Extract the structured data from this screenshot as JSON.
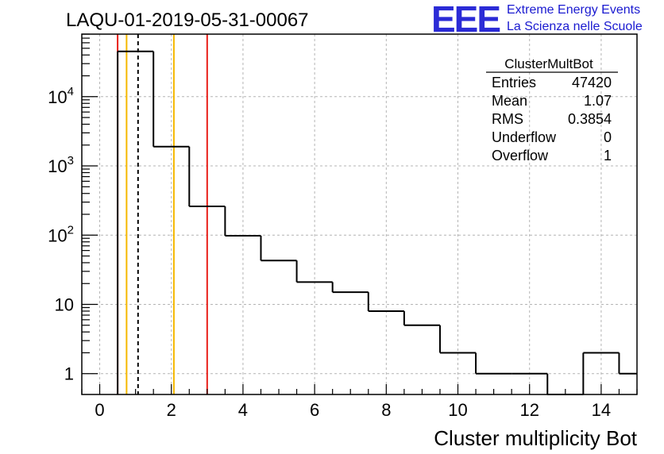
{
  "chart_data": {
    "type": "histogram",
    "title": "LAQU-01-2019-05-31-00067",
    "xlabel": "Cluster multiplicity Bot",
    "ylabel": "",
    "xlim": [
      -0.5,
      15
    ],
    "ylim": [
      0.5,
      80000
    ],
    "yscale": "log",
    "grid": true,
    "bin_edges": [
      0.5,
      1.5,
      2.5,
      3.5,
      4.5,
      5.5,
      6.5,
      7.5,
      8.5,
      9.5,
      10.5,
      11.5,
      12.5,
      13.5,
      14.5,
      15.5
    ],
    "counts": [
      45000,
      1900,
      260,
      98,
      43,
      21,
      15,
      8,
      5,
      2,
      1,
      1,
      0,
      2,
      1
    ],
    "x_ticks": [
      "0",
      "2",
      "4",
      "6",
      "8",
      "10",
      "12",
      "14"
    ],
    "x_tick_values": [
      0,
      2,
      4,
      6,
      8,
      10,
      12,
      14
    ],
    "y_ticks": [
      {
        "value": 1,
        "base": "1",
        "exp": ""
      },
      {
        "value": 10,
        "base": "10",
        "exp": ""
      },
      {
        "value": 100,
        "base": "10",
        "exp": "2"
      },
      {
        "value": 1000,
        "base": "10",
        "exp": "3"
      },
      {
        "value": 10000,
        "base": "10",
        "exp": "4"
      }
    ],
    "vertical_lines": [
      {
        "x": 0.5,
        "color": "#e8201a",
        "style": "solid"
      },
      {
        "x": 0.75,
        "color": "#f5b800",
        "style": "solid"
      },
      {
        "x": 1.07,
        "color": "#000000",
        "style": "dashed"
      },
      {
        "x": 2.07,
        "color": "#f5b800",
        "style": "solid"
      },
      {
        "x": 3.0,
        "color": "#e8201a",
        "style": "solid"
      }
    ],
    "stats_box": {
      "name": "ClusterMultBot",
      "rows": [
        {
          "label": "Entries",
          "value": "47420"
        },
        {
          "label": "Mean",
          "value": "1.07"
        },
        {
          "label": "RMS",
          "value": "0.3854"
        },
        {
          "label": "Underflow",
          "value": "0"
        },
        {
          "label": "Overflow",
          "value": "1"
        }
      ]
    }
  },
  "logo": {
    "mark": "EEE",
    "line1": "Extreme Energy Events",
    "line2": "La Scienza nelle Scuole",
    "color": "#1a1ad0"
  }
}
